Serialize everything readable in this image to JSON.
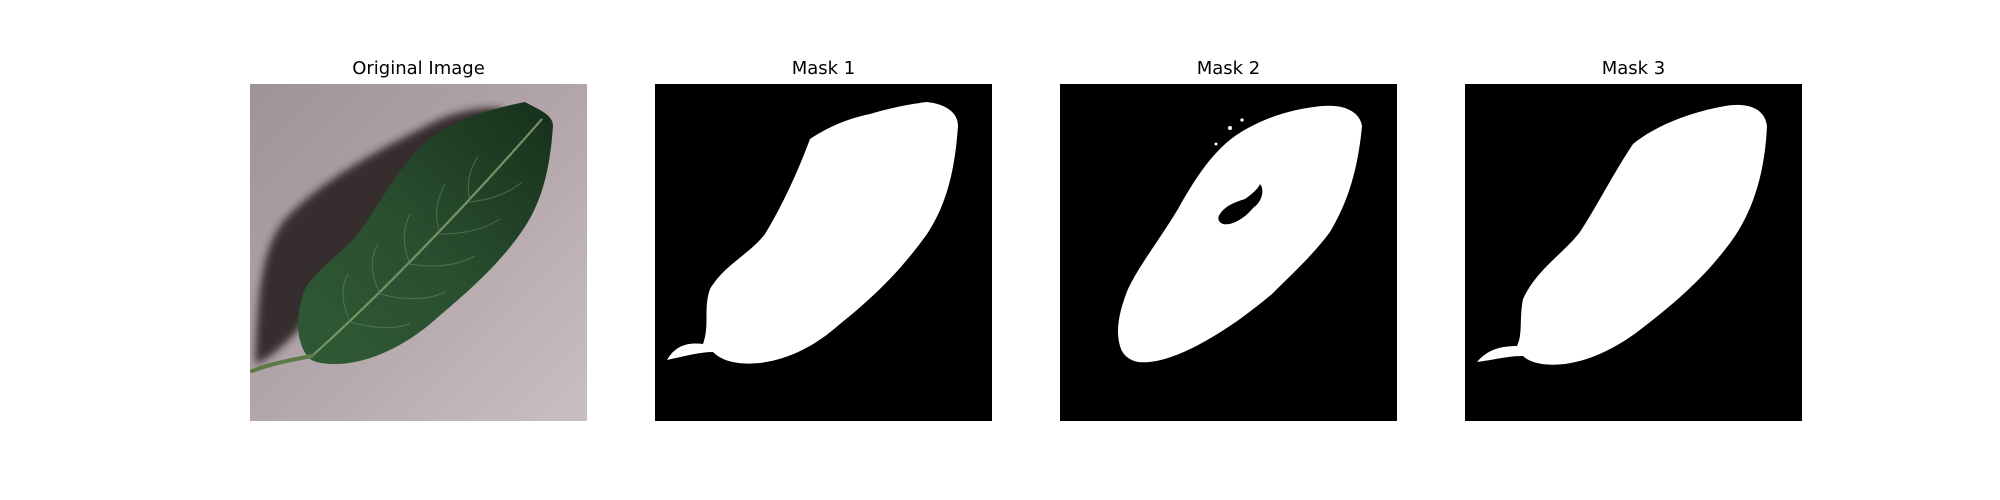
{
  "figure": {
    "panels": [
      {
        "title": "Original Image"
      },
      {
        "title": "Mask 1"
      },
      {
        "title": "Mask 2"
      },
      {
        "title": "Mask 3"
      }
    ]
  },
  "colors": {
    "background": "#ffffff",
    "surface": "#b3a6aa",
    "shadow": "#2a2424",
    "leaf_dark": "#1f3a24",
    "leaf_mid": "#2f5a34",
    "mask_bg": "#000000",
    "mask_fg": "#ffffff"
  }
}
